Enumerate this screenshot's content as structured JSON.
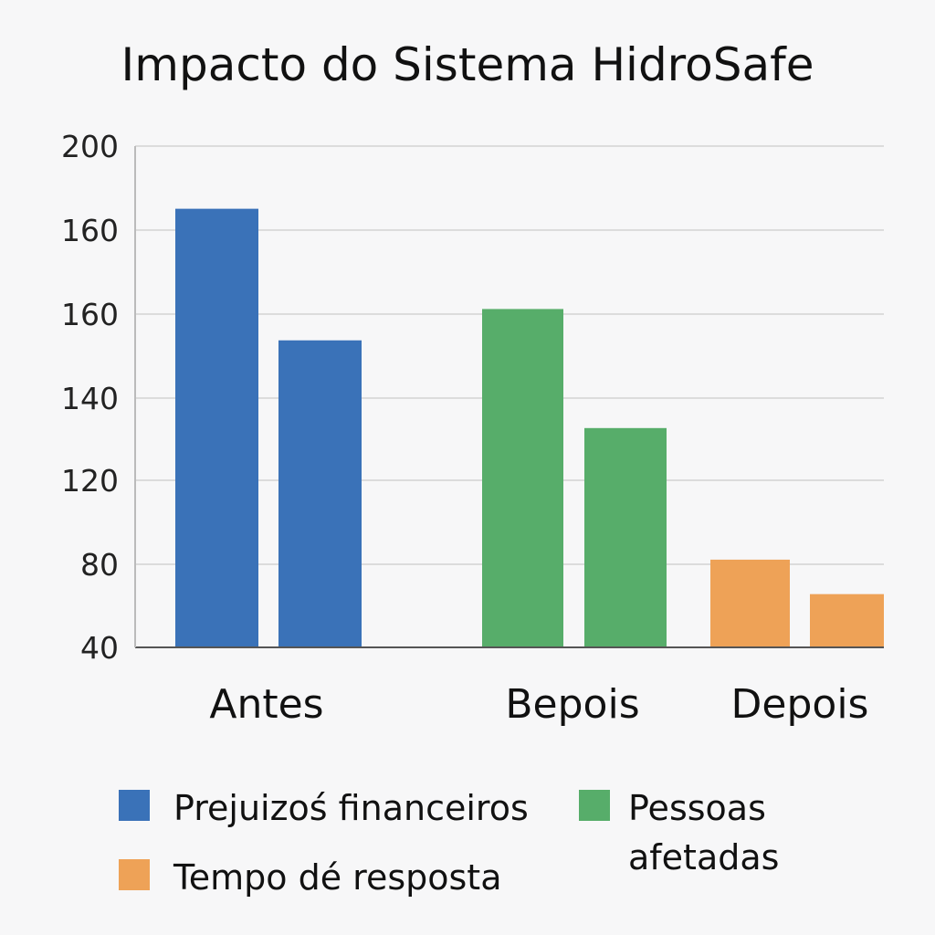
{
  "chart_data": {
    "type": "bar",
    "title": "Impacto do Sistema HidroSafe",
    "xlabel": "",
    "ylabel": "",
    "y_tick_labels": [
      "200",
      "160",
      "160",
      "140",
      "120",
      "80",
      "40"
    ],
    "categories": [
      "Antes",
      "Bepois",
      "Depois"
    ],
    "bars": [
      {
        "category": "Antes",
        "series": "Prejuizoś financeiros",
        "value": 180
      },
      {
        "category": "Antes",
        "series": "Prejuizoś financeiros",
        "value": 138
      },
      {
        "category": "Bepois",
        "series": "Pessoas afetadas",
        "value": 148
      },
      {
        "category": "Bepois",
        "series": "Pessoas afetadas",
        "value": 110
      },
      {
        "category": "Depois",
        "series": "Tempo dé resposta",
        "value": 68
      },
      {
        "category": "Depois",
        "series": "Tempo dé resposta",
        "value": 57
      }
    ],
    "ylim": [
      40,
      200
    ],
    "grid": true,
    "legend_position": "bottom",
    "legend": [
      {
        "label": "Prejuizoś financeiros",
        "color": "#3a72b8"
      },
      {
        "label": "Pessoas afetadas",
        "color": "#57ad6a"
      },
      {
        "label": "Tempo dé resposta",
        "color": "#eea257"
      }
    ],
    "colors": {
      "Prejuizoś financeiros": "#3a72b8",
      "Pessoas afetadas": "#57ad6a",
      "Tempo dé resposta": "#eea257"
    }
  }
}
